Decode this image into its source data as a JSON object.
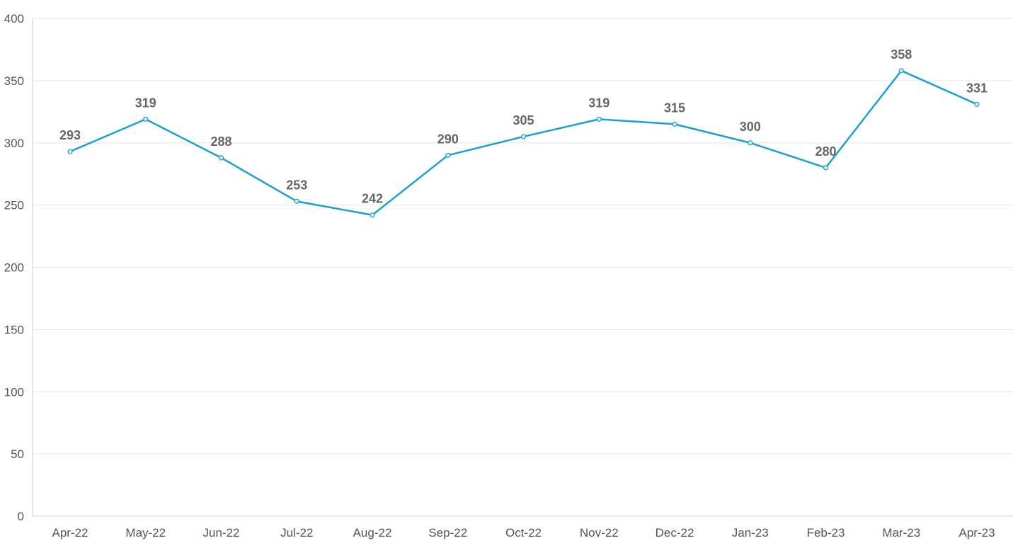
{
  "chart_data": {
    "type": "line",
    "categories": [
      "Apr-22",
      "May-22",
      "Jun-22",
      "Jul-22",
      "Aug-22",
      "Sep-22",
      "Oct-22",
      "Nov-22",
      "Dec-22",
      "Jan-23",
      "Feb-23",
      "Mar-23",
      "Apr-23"
    ],
    "series": [
      {
        "values": [
          293,
          319,
          288,
          253,
          242,
          290,
          305,
          319,
          315,
          300,
          280,
          358,
          331
        ],
        "color": "#1a9fd6"
      }
    ],
    "title": "",
    "xlabel": "",
    "ylabel": "",
    "ylim": [
      0,
      400
    ],
    "yticks": [
      0,
      50,
      100,
      150,
      200,
      250,
      300,
      350,
      400
    ],
    "grid": true,
    "legend": "none",
    "data_labels": true
  }
}
